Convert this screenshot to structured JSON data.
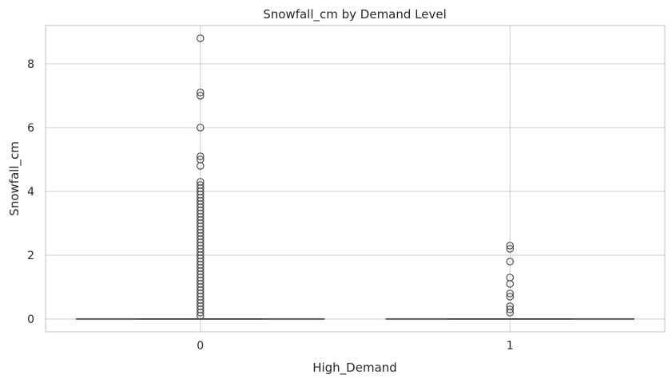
{
  "chart_data": {
    "type": "box",
    "title": "Snowfall_cm by Demand Level",
    "xlabel": "High_Demand",
    "ylabel": "Snowfall_cm",
    "categories": [
      "0",
      "1"
    ],
    "ylim": [
      -0.4,
      9.2
    ],
    "yticks": [
      0,
      2,
      4,
      6,
      8
    ],
    "ytick_labels": [
      "0",
      "2",
      "4",
      "6",
      "8"
    ],
    "grid": true,
    "legend": "none",
    "box_color": "#4d4d4d",
    "boxes": [
      {
        "category": "0",
        "q1": 0,
        "median": 0,
        "q3": 0,
        "whisker_low": 0,
        "whisker_high": 0,
        "fliers": [
          0.1,
          0.2,
          0.3,
          0.4,
          0.5,
          0.6,
          0.7,
          0.8,
          0.9,
          1.0,
          1.1,
          1.2,
          1.3,
          1.4,
          1.5,
          1.6,
          1.7,
          1.8,
          1.9,
          2.0,
          2.1,
          2.2,
          2.3,
          2.4,
          2.5,
          2.6,
          2.7,
          2.8,
          2.9,
          3.0,
          3.1,
          3.2,
          3.3,
          3.4,
          3.5,
          3.6,
          3.7,
          3.8,
          3.9,
          4.0,
          4.1,
          4.2,
          4.3,
          4.8,
          5.0,
          5.1,
          6.0,
          7.0,
          7.1,
          8.8
        ]
      },
      {
        "category": "1",
        "q1": 0,
        "median": 0,
        "q3": 0,
        "whisker_low": 0,
        "whisker_high": 0,
        "fliers": [
          0.2,
          0.3,
          0.4,
          0.7,
          0.8,
          1.1,
          1.3,
          1.8,
          2.2,
          2.3
        ]
      }
    ]
  }
}
